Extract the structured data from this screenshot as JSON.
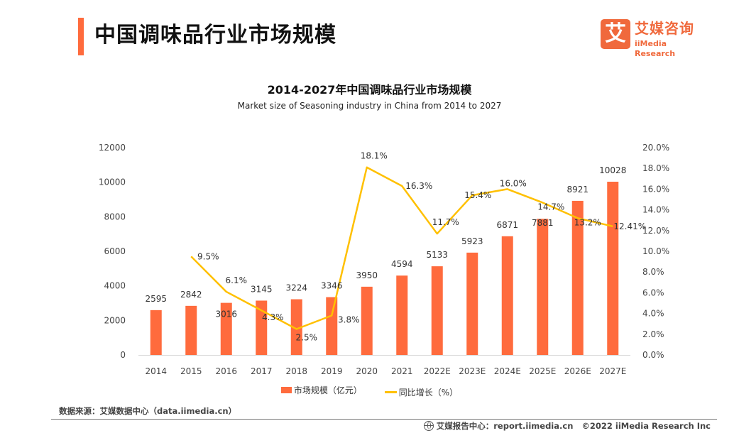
{
  "header": {
    "title": "中国调味品行业市场规模",
    "logo_glyph": "艾",
    "logo_cn": "艾媒咨询",
    "logo_en": "iiMedia Research"
  },
  "colors": {
    "accent": "#ff6b3d",
    "bar": "#ff6b3d",
    "line": "#ffc000",
    "logo": "#f0693c"
  },
  "chart_data": {
    "type": "bar",
    "title": "2014-2027年中国调味品行业市场规模",
    "subtitle": "Market size of Seasoning industry in China from 2014 to 2027",
    "categories": [
      "2014",
      "2015",
      "2016",
      "2017",
      "2018",
      "2019",
      "2020",
      "2021",
      "2022E",
      "2023E",
      "2024E",
      "2025E",
      "2026E",
      "2027E"
    ],
    "series": [
      {
        "name": "市场规模（亿元）",
        "type": "bar",
        "axis": "left",
        "values": [
          2595,
          2842,
          3016,
          3145,
          3224,
          3346,
          3950,
          4594,
          5133,
          5923,
          6871,
          7881,
          8921,
          10028
        ],
        "labels": [
          "2595",
          "2842",
          "3016",
          "3145",
          "3224",
          "3346",
          "3950",
          "4594",
          "5133",
          "5923",
          "6871",
          "7881",
          "8921",
          "10028"
        ]
      },
      {
        "name": "同比增长（%）",
        "type": "line",
        "axis": "right",
        "values": [
          null,
          9.5,
          6.1,
          4.3,
          2.5,
          3.8,
          18.1,
          16.3,
          11.7,
          15.4,
          16.0,
          14.7,
          13.2,
          12.41
        ],
        "labels": [
          null,
          "9.5%",
          "6.1%",
          "4.3%",
          "2.5%",
          "3.8%",
          "18.1%",
          "16.3%",
          "11.7%",
          "15.4%",
          "16.0%",
          "14.7%",
          "13.2%",
          "12.41%"
        ]
      }
    ],
    "y_left": {
      "ylim": [
        0,
        12000
      ],
      "ticks": [
        "0",
        "2000",
        "4000",
        "6000",
        "8000",
        "10000",
        "12000"
      ]
    },
    "y_right": {
      "ylim": [
        0,
        20
      ],
      "ticks": [
        "0.0%",
        "2.0%",
        "4.0%",
        "6.0%",
        "8.0%",
        "10.0%",
        "12.0%",
        "14.0%",
        "16.0%",
        "18.0%",
        "20.0%"
      ]
    },
    "xlabel": "",
    "ylabel": "",
    "grid": false,
    "legend_position": "bottom"
  },
  "footer": {
    "source": "数据来源：艾媒数据中心（data.iimedia.cn）",
    "report_center": "艾媒报告中心：report.iimedia.cn",
    "copyright": "©2022  iiMedia Research  Inc"
  }
}
